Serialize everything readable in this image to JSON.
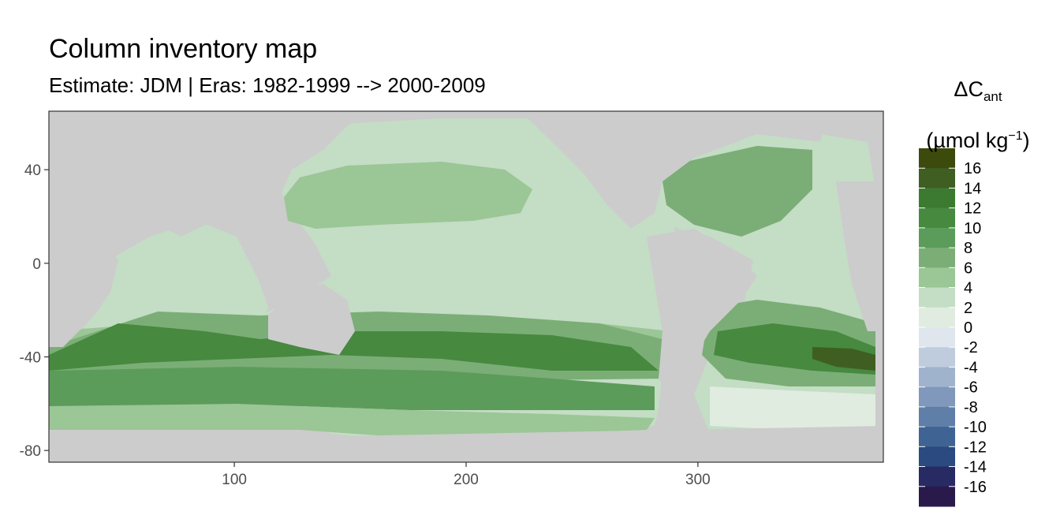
{
  "chart_data": {
    "type": "heatmap",
    "title": "Column inventory map",
    "subtitle": "Estimate: JDM  | Eras: 1982-1999 --> 2000-2009",
    "xlabel": "",
    "ylabel": "",
    "xlim": [
      20,
      380
    ],
    "ylim": [
      -85,
      65
    ],
    "x_ticks": [
      100,
      200,
      300
    ],
    "y_ticks": [
      40,
      0,
      -40,
      -80
    ],
    "legend": {
      "title_symbol": "ΔC",
      "title_subscript": "ant",
      "unit_prefix": "(µmol kg",
      "unit_superscript": "−1",
      "unit_suffix": ")",
      "levels": [
        "16",
        "14",
        "12",
        "10",
        "8",
        "6",
        "4",
        "2",
        "0",
        "-2",
        "-4",
        "-6",
        "-8",
        "-10",
        "-12",
        "-14",
        "-16"
      ],
      "colors": [
        "#3c4a0c",
        "#3f5e22",
        "#3d7a31",
        "#46893f",
        "#5c9c5a",
        "#7bae76",
        "#9bc696",
        "#c4ddc5",
        "#e0ece0",
        "#dfe6ee",
        "#bfccdd",
        "#9fb3cd",
        "#7f98bb",
        "#5f7fa9",
        "#3f6494",
        "#2a4a80",
        "#272a63",
        "#2a1a4c"
      ],
      "position": "right"
    },
    "land_color": "#cccccc",
    "panel_background": "#cccccc",
    "grid": false
  }
}
